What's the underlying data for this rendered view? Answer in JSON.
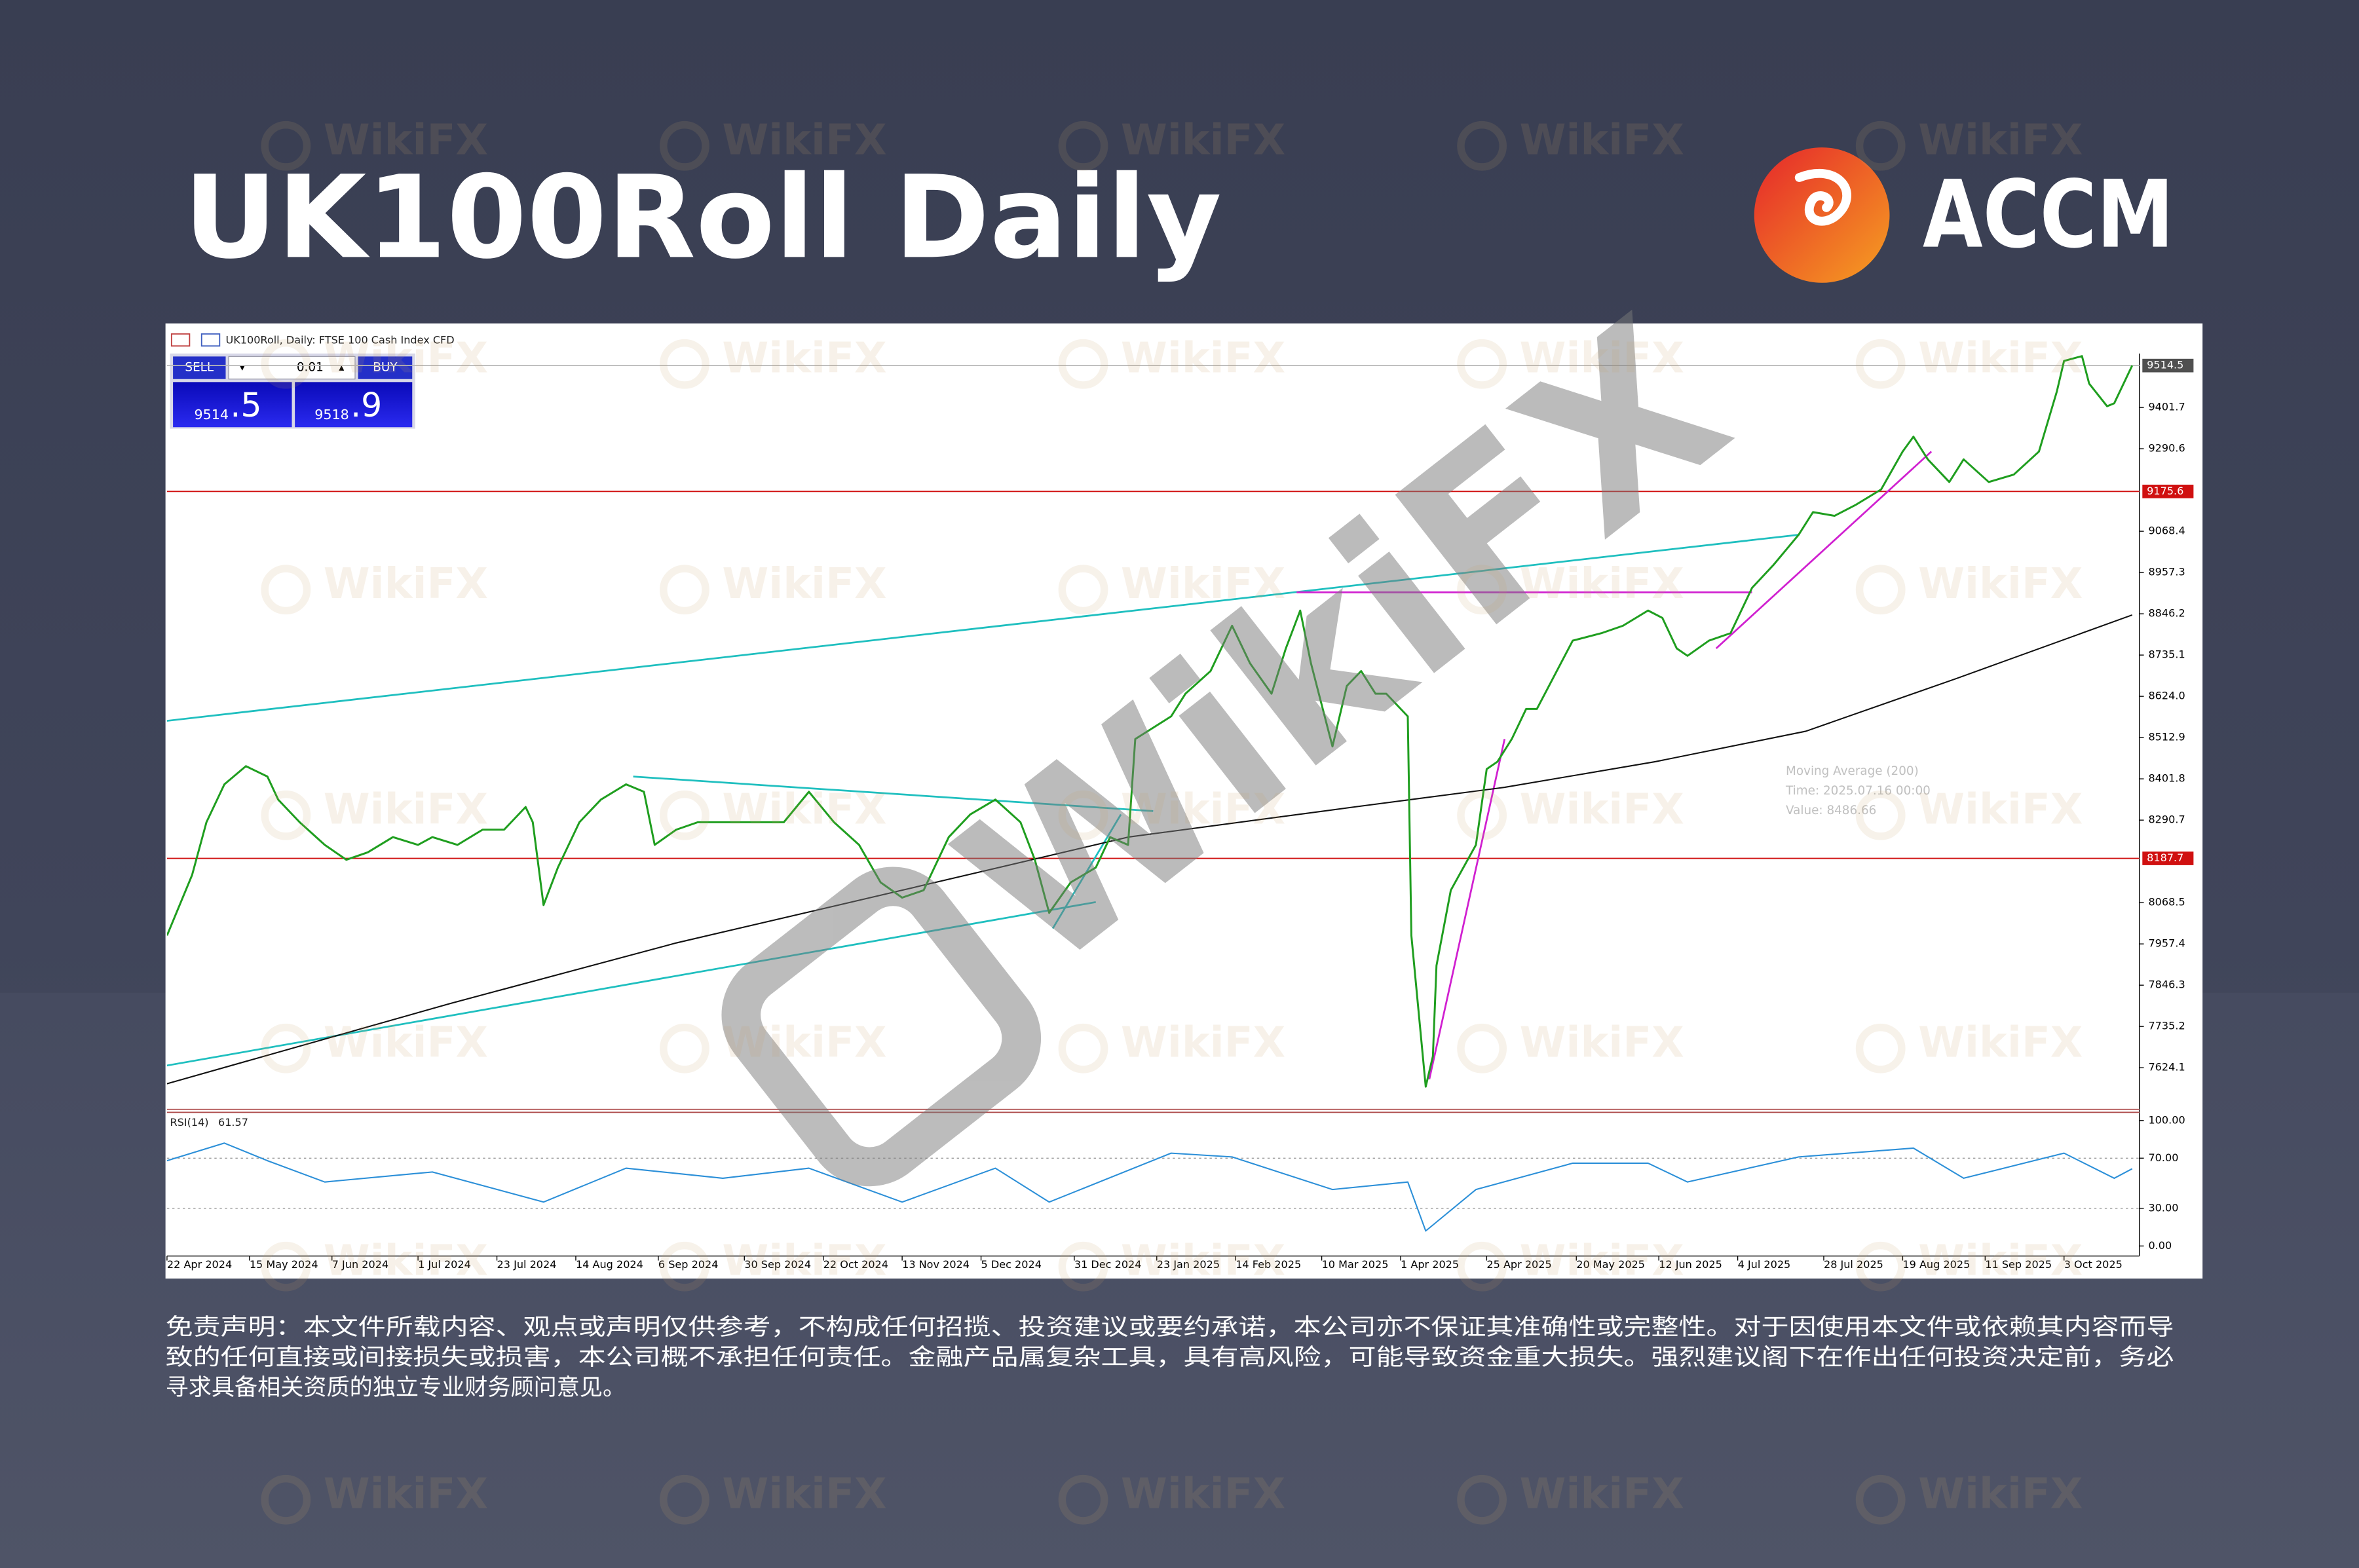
{
  "header": {
    "title": "UK100Roll Daily",
    "brand": "ACCM"
  },
  "watermark": "WikiFX",
  "chart_data": [
    {
      "type": "line",
      "title": "UK100Roll, Daily: FTSE 100 Cash Index CFD",
      "x": [
        "2024-04-22",
        "2024-04-29",
        "2024-05-03",
        "2024-05-08",
        "2024-05-14",
        "2024-05-20",
        "2024-05-23",
        "2024-05-29",
        "2024-06-05",
        "2024-06-11",
        "2024-06-17",
        "2024-06-24",
        "2024-07-01",
        "2024-07-05",
        "2024-07-12",
        "2024-07-19",
        "2024-07-25",
        "2024-07-31",
        "2024-08-02",
        "2024-08-05",
        "2024-08-09",
        "2024-08-15",
        "2024-08-21",
        "2024-08-28",
        "2024-09-02",
        "2024-09-05",
        "2024-09-11",
        "2024-09-17",
        "2024-09-24",
        "2024-10-02",
        "2024-10-11",
        "2024-10-18",
        "2024-10-25",
        "2024-11-01",
        "2024-11-07",
        "2024-11-13",
        "2024-11-19",
        "2024-11-26",
        "2024-12-02",
        "2024-12-09",
        "2024-12-16",
        "2024-12-20",
        "2024-12-24",
        "2024-12-30",
        "2025-01-06",
        "2025-01-10",
        "2025-01-15",
        "2025-01-17",
        "2025-01-27",
        "2025-01-31",
        "2025-02-07",
        "2025-02-13",
        "2025-02-18",
        "2025-02-24",
        "2025-02-28",
        "2025-03-04",
        "2025-03-07",
        "2025-03-13",
        "2025-03-17",
        "2025-03-21",
        "2025-03-25",
        "2025-03-28",
        "2025-04-03",
        "2025-04-04",
        "2025-04-08",
        "2025-04-10",
        "2025-04-11",
        "2025-04-15",
        "2025-04-22",
        "2025-04-25",
        "2025-04-28",
        "2025-05-02",
        "2025-05-06",
        "2025-05-09",
        "2025-05-19",
        "2025-05-27",
        "2025-06-02",
        "2025-06-09",
        "2025-06-13",
        "2025-06-17",
        "2025-06-20",
        "2025-06-26",
        "2025-07-02",
        "2025-07-08",
        "2025-07-14",
        "2025-07-21",
        "2025-07-25",
        "2025-07-31",
        "2025-08-06",
        "2025-08-13",
        "2025-08-19",
        "2025-08-22",
        "2025-08-26",
        "2025-09-01",
        "2025-09-05",
        "2025-09-12",
        "2025-09-19",
        "2025-09-26",
        "2025-10-01",
        "2025-10-03",
        "2025-10-08",
        "2025-10-10",
        "2025-10-15",
        "2025-10-17",
        "2025-10-22"
      ],
      "series": [
        {
          "color": "#1f9e1f",
          "values": [
            7980,
            8143,
            8285,
            8387,
            8436,
            8408,
            8346,
            8285,
            8224,
            8184,
            8204,
            8245,
            8224,
            8245,
            8224,
            8265,
            8265,
            8326,
            8285,
            8062,
            8163,
            8285,
            8346,
            8387,
            8367,
            8224,
            8265,
            8285,
            8285,
            8285,
            8285,
            8367,
            8285,
            8224,
            8123,
            8082,
            8102,
            8245,
            8306,
            8346,
            8285,
            8184,
            8041,
            8123,
            8163,
            8245,
            8224,
            8509,
            8570,
            8631,
            8692,
            8814,
            8713,
            8631,
            8753,
            8855,
            8713,
            8489,
            8652,
            8692,
            8631,
            8631,
            8570,
            7980,
            7573,
            7655,
            7899,
            8102,
            8224,
            8428,
            8448,
            8509,
            8590,
            8590,
            8774,
            8794,
            8814,
            8855,
            8835,
            8753,
            8733,
            8774,
            8794,
            8916,
            8978,
            9059,
            9120,
            9110,
            9140,
            9181,
            9283,
            9323,
            9262,
            9201,
            9262,
            9201,
            9221,
            9283,
            9445,
            9527,
            9540,
            9466,
            9405,
            9413,
            9514.5
          ]
        }
      ],
      "xlim": [
        "2024-04-22",
        "2025-10-24"
      ],
      "ylim": [
        7514,
        9547
      ],
      "yticks": [
        9401.7,
        9290.6,
        9068.4,
        8957.3,
        8846.2,
        8735.1,
        {
          "value": 8624,
          "label": "8624.0"
        },
        8512.9,
        8401.8,
        8290.7,
        8068.5,
        7957.4,
        7846.3,
        7735.2,
        7624.1
      ],
      "current_price": 9514.5,
      "levels": [
        {
          "value": 9175.6,
          "color": "#d01010"
        },
        {
          "value": 8187.7,
          "color": "#d01010"
        }
      ],
      "moving_average": {
        "name": "Moving Average (200)",
        "color": "#111111",
        "x": [
          "2024-04-22",
          "2024-07-10",
          "2024-09-11",
          "2024-11-13",
          "2025-01-15",
          "2025-03-19",
          "2025-04-30",
          "2025-06-11",
          "2025-07-23",
          "2025-09-03",
          "2025-10-22"
        ],
        "values": [
          7581,
          7797,
          7960,
          8102,
          8245,
          8326,
          8379,
          8448,
          8530,
          8672,
          8843
        ],
        "tooltip": [
          "Time: 2025.07.16 00:00",
          "Value: 8486.66"
        ]
      },
      "trendlines": [
        {
          "color": "#1fbfbf",
          "points": [
            [
              "2024-04-22",
              8558
            ],
            [
              "2025-07-21",
              9059
            ]
          ]
        },
        {
          "color": "#1fbfbf",
          "points": [
            [
              "2024-04-22",
              7630
            ],
            [
              "2025-01-06",
              8070
            ]
          ]
        },
        {
          "color": "#1fbfbf",
          "points": [
            [
              "2024-08-30",
              8408
            ],
            [
              "2025-01-22",
              8315
            ]
          ]
        },
        {
          "color": "#1fbfbf",
          "points": [
            [
              "2024-12-25",
              7999
            ],
            [
              "2025-01-13",
              8306
            ]
          ]
        },
        {
          "color": "#d020d0",
          "points": [
            [
              "2025-04-09",
              7593
            ],
            [
              "2025-04-30",
              8509
            ]
          ]
        },
        {
          "color": "#d020d0",
          "points": [
            [
              "2025-06-28",
              8753
            ],
            [
              "2025-08-27",
              9283
            ]
          ]
        },
        {
          "color": "#d020d0",
          "points": [
            [
              "2025-03-03",
              8904
            ],
            [
              "2025-07-08",
              8904
            ]
          ]
        }
      ],
      "trade_panel": {
        "sell": "SELL",
        "volume": "0.01",
        "buy": "BUY",
        "sell_price": [
          "9514",
          ".5"
        ],
        "buy_price": [
          "9518",
          ".9"
        ]
      }
    },
    {
      "type": "line",
      "title": "RSI(14)",
      "x": [
        "2024-04-22",
        "2024-05-08",
        "2024-05-20",
        "2024-06-05",
        "2024-07-05",
        "2024-08-05",
        "2024-08-28",
        "2024-09-24",
        "2024-10-18",
        "2024-11-13",
        "2024-12-09",
        "2024-12-24",
        "2025-01-27",
        "2025-02-13",
        "2025-03-13",
        "2025-04-03",
        "2025-04-08",
        "2025-04-22",
        "2025-05-19",
        "2025-06-09",
        "2025-06-20",
        "2025-07-21",
        "2025-08-22",
        "2025-09-05",
        "2025-10-03",
        "2025-10-17",
        "2025-10-22"
      ],
      "series": [
        {
          "color": "#2b8fd8",
          "values": [
            68,
            82,
            68,
            51,
            59,
            35,
            62,
            54,
            62,
            35,
            62,
            35,
            74,
            71,
            45,
            51,
            12,
            45,
            66,
            66,
            51,
            71,
            78,
            54,
            74,
            54,
            61.57
          ]
        }
      ],
      "xlim": [
        "2024-04-22",
        "2025-10-24"
      ],
      "ylim": [
        -8,
        103.5
      ],
      "yticks": [
        {
          "value": 100,
          "label": "100.00"
        },
        {
          "value": 70,
          "label": "70.00"
        },
        {
          "value": 30,
          "label": "30.00"
        },
        {
          "value": 0,
          "label": "0.00"
        }
      ],
      "levels": [
        70,
        30
      ],
      "xticks": [
        {
          "value": "2024-04-22",
          "label": "22 Apr 2024"
        },
        {
          "value": "2024-05-15",
          "label": "15 May 2024"
        },
        {
          "value": "2024-06-07",
          "label": "7 Jun 2024"
        },
        {
          "value": "2024-07-01",
          "label": "1 Jul 2024"
        },
        {
          "value": "2024-07-23",
          "label": "23 Jul 2024"
        },
        {
          "value": "2024-08-14",
          "label": "14 Aug 2024"
        },
        {
          "value": "2024-09-06",
          "label": "6 Sep 2024"
        },
        {
          "value": "2024-09-30",
          "label": "30 Sep 2024"
        },
        {
          "value": "2024-10-22",
          "label": "22 Oct 2024"
        },
        {
          "value": "2024-11-13",
          "label": "13 Nov 2024"
        },
        {
          "value": "2024-12-05",
          "label": "5 Dec 2024"
        },
        {
          "value": "2024-12-31",
          "label": "31 Dec 2024"
        },
        {
          "value": "2025-01-23",
          "label": "23 Jan 2025"
        },
        {
          "value": "2025-02-14",
          "label": "14 Feb 2025"
        },
        {
          "value": "2025-03-10",
          "label": "10 Mar 2025"
        },
        {
          "value": "2025-04-01",
          "label": "1 Apr 2025"
        },
        {
          "value": "2025-04-25",
          "label": "25 Apr 2025"
        },
        {
          "value": "2025-05-20",
          "label": "20 May 2025"
        },
        {
          "value": "2025-06-12",
          "label": "12 Jun 2025"
        },
        {
          "value": "2025-07-04",
          "label": "4 Jul 2025"
        },
        {
          "value": "2025-07-28",
          "label": "28 Jul 2025"
        },
        {
          "value": "2025-08-19",
          "label": "19 Aug 2025"
        },
        {
          "value": "2025-09-11",
          "label": "11 Sep 2025"
        },
        {
          "value": "2025-10-03",
          "label": "3 Oct 2025"
        }
      ]
    }
  ],
  "disclaimer": [
    "免责声明：本文件所载内容、观点或声明仅供参考，不构成任何招揽、投资建议或要约承诺，本公司亦不保证其准确性或完整性。对于因使用本文件或依赖其内容而导",
    "致的任何直接或间接损失或损害，本公司概不承担任何责任。金融产品属复杂工具，具有高风险，可能导致资金重大损失。强烈建议阁下在作出任何投资决定前，务必",
    "寻求具备相关资质的独立专业财务顾问意见。"
  ]
}
